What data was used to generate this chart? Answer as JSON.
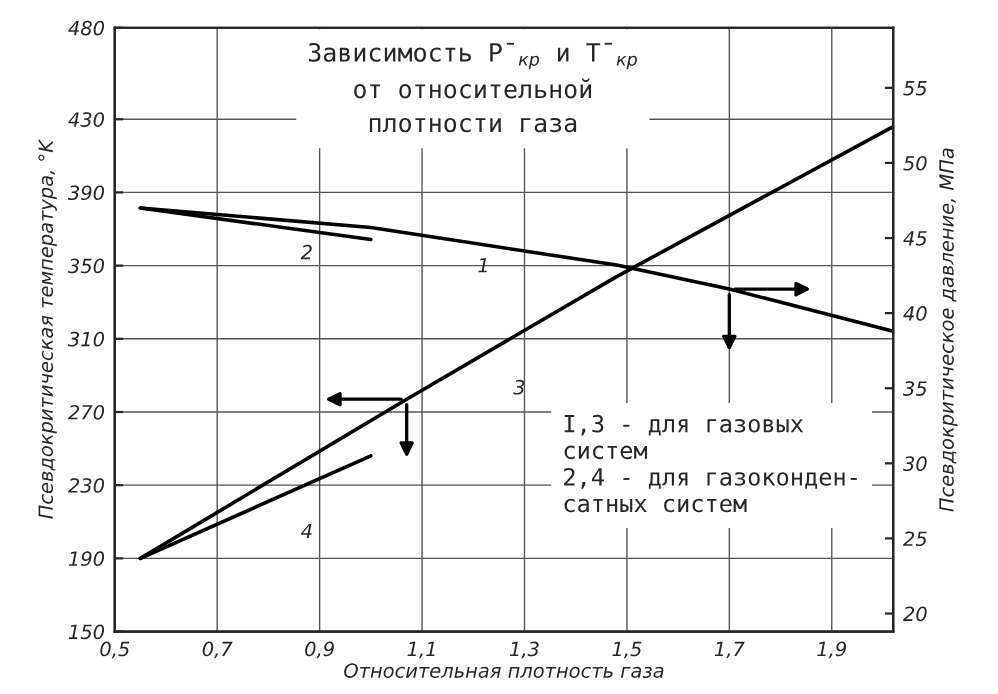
{
  "chart_data": {
    "type": "line",
    "title": "Зависимость P̄$_{кр}$ и T̄$_{кр}$\nот относительной\nплотности газа",
    "xlabel": "Относительная плотность газа",
    "ylabel": "Псевдокритическая температура, °K",
    "y2label": "Псевдокритическое давление, МПа",
    "xlim": [
      0.5,
      2.02
    ],
    "xticks": [
      {
        "value": 0.5,
        "label": "0,5"
      },
      {
        "value": 0.7,
        "label": "0,7"
      },
      {
        "value": 0.9,
        "label": "0,9"
      },
      {
        "value": 1.1,
        "label": "1,1"
      },
      {
        "value": 1.3,
        "label": "1,3"
      },
      {
        "value": 1.5,
        "label": "1,5"
      },
      {
        "value": 1.7,
        "label": "1,7"
      },
      {
        "value": 1.9,
        "label": "1,9"
      }
    ],
    "ylim": [
      150,
      480
    ],
    "yticks": [
      150,
      190,
      230,
      270,
      310,
      350,
      390,
      430,
      480
    ],
    "y2lim": [
      18.8,
      59
    ],
    "y2ticks": [
      20,
      25,
      30,
      35,
      40,
      45,
      50,
      55
    ],
    "grid": true,
    "line_style": "solid",
    "series": [
      {
        "color": "#000000",
        "axis": "y2",
        "x": [
          0.55,
          1.0,
          1.48,
          1.7,
          2.02
        ],
        "values": [
          47.0,
          45.7,
          43.2,
          41.6,
          38.8
        ]
      },
      {
        "color": "#000000",
        "axis": "y2",
        "x": [
          0.55,
          1.0
        ],
        "values": [
          47.0,
          44.9
        ]
      },
      {
        "color": "#000000",
        "x": [
          0.55,
          1.07,
          1.48,
          2.02
        ],
        "values": [
          190,
          277,
          344,
          426
        ]
      },
      {
        "color": "#000000",
        "x": [
          0.55,
          1.0
        ],
        "values": [
          190,
          246
        ]
      }
    ],
    "annotations": [
      "1",
      "2",
      "3",
      "4",
      "I,3 - для газовых\nсистем\n2,4 - для газоконден-\nсатных систем"
    ]
  }
}
